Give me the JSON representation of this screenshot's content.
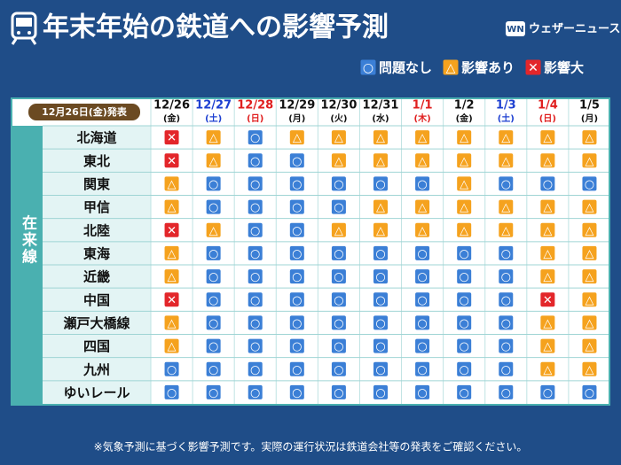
{
  "header": {
    "title": "年末年始の鉄道への影響予測",
    "brand": "ウェザーニュース",
    "brand_mark": "WN"
  },
  "legend": [
    {
      "symbol": "○",
      "label": "問題なし",
      "color": "#3b7fd6"
    },
    {
      "symbol": "△",
      "label": "影響あり",
      "color": "#f5a21e"
    },
    {
      "symbol": "✕",
      "label": "影響大",
      "color": "#e3262a"
    }
  ],
  "table": {
    "issued": "12月26日(金)発表",
    "group": "在来線",
    "columns": [
      {
        "date": "12/26",
        "day": "(金)",
        "color": "#111111"
      },
      {
        "date": "12/27",
        "day": "(土)",
        "color": "#1d3fd1"
      },
      {
        "date": "12/28",
        "day": "(日)",
        "color": "#e01f1f"
      },
      {
        "date": "12/29",
        "day": "(月)",
        "color": "#111111"
      },
      {
        "date": "12/30",
        "day": "(火)",
        "color": "#111111"
      },
      {
        "date": "12/31",
        "day": "(水)",
        "color": "#111111"
      },
      {
        "date": "1/1",
        "day": "(木)",
        "color": "#e01f1f"
      },
      {
        "date": "1/2",
        "day": "(金)",
        "color": "#111111"
      },
      {
        "date": "1/3",
        "day": "(土)",
        "color": "#1d3fd1"
      },
      {
        "date": "1/4",
        "day": "(日)",
        "color": "#e01f1f"
      },
      {
        "date": "1/5",
        "day": "(月)",
        "color": "#111111"
      }
    ],
    "rows": [
      {
        "name": "北海道",
        "cells": [
          "✕",
          "△",
          "○",
          "△",
          "△",
          "△",
          "△",
          "△",
          "△",
          "△",
          "△"
        ]
      },
      {
        "name": "東北",
        "cells": [
          "✕",
          "△",
          "○",
          "○",
          "△",
          "△",
          "△",
          "△",
          "△",
          "△",
          "△"
        ]
      },
      {
        "name": "関東",
        "cells": [
          "△",
          "○",
          "○",
          "○",
          "○",
          "○",
          "○",
          "△",
          "○",
          "○",
          "○"
        ]
      },
      {
        "name": "甲信",
        "cells": [
          "△",
          "○",
          "○",
          "○",
          "○",
          "△",
          "△",
          "△",
          "△",
          "△",
          "△"
        ]
      },
      {
        "name": "北陸",
        "cells": [
          "✕",
          "△",
          "○",
          "○",
          "△",
          "△",
          "△",
          "△",
          "△",
          "△",
          "△"
        ]
      },
      {
        "name": "東海",
        "cells": [
          "△",
          "○",
          "○",
          "○",
          "○",
          "○",
          "○",
          "○",
          "○",
          "△",
          "△"
        ]
      },
      {
        "name": "近畿",
        "cells": [
          "△",
          "○",
          "○",
          "○",
          "○",
          "○",
          "○",
          "○",
          "○",
          "△",
          "△"
        ]
      },
      {
        "name": "中国",
        "cells": [
          "✕",
          "○",
          "○",
          "○",
          "○",
          "○",
          "○",
          "○",
          "○",
          "✕",
          "△"
        ]
      },
      {
        "name": "瀬戸大橋線",
        "cells": [
          "△",
          "○",
          "○",
          "○",
          "○",
          "○",
          "○",
          "○",
          "○",
          "△",
          "△"
        ]
      },
      {
        "name": "四国",
        "cells": [
          "△",
          "○",
          "○",
          "○",
          "○",
          "○",
          "○",
          "○",
          "○",
          "△",
          "△"
        ]
      },
      {
        "name": "九州",
        "cells": [
          "○",
          "○",
          "○",
          "○",
          "○",
          "○",
          "○",
          "○",
          "○",
          "△",
          "△"
        ]
      },
      {
        "name": "ゆいレール",
        "cells": [
          "○",
          "○",
          "○",
          "○",
          "○",
          "○",
          "○",
          "○",
          "○",
          "○",
          "○"
        ]
      }
    ]
  },
  "footnote": "※気象予測に基づく影響予測です。実際の運行状況は鉄道会社等の発表をご確認ください。"
}
